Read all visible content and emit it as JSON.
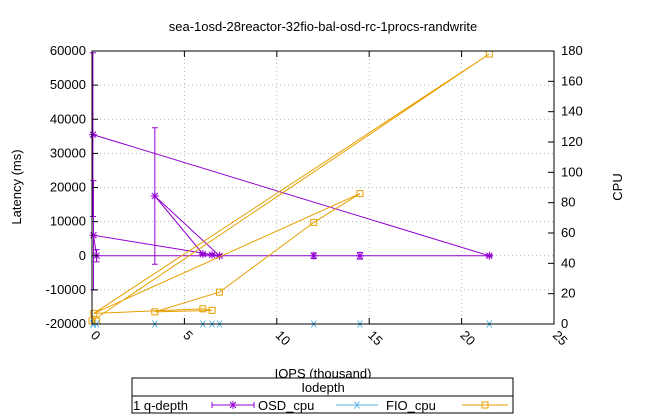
{
  "chart_data": {
    "type": "line",
    "title": "sea-1osd-28reactor-32fio-bal-osd-rc-1procs-randwrite",
    "xlabel": "IOPS (thousand)",
    "ylabel": "Latency (ms)",
    "y2label": "CPU",
    "xlim": [
      0,
      25
    ],
    "ylim": [
      -20000,
      60000
    ],
    "y2lim": [
      0,
      180
    ],
    "xticks": [
      "0",
      "5",
      "10",
      "15",
      "20",
      "25"
    ],
    "yticks": [
      "-20000",
      "-10000",
      "0",
      "10000",
      "20000",
      "30000",
      "40000",
      "50000",
      "60000"
    ],
    "y2ticks": [
      "0",
      "20",
      "40",
      "60",
      "80",
      "100",
      "120",
      "140",
      "160",
      "180"
    ],
    "legend": {
      "title": "Iodepth",
      "label": "1 q-depth",
      "placement": "bottom-center"
    },
    "series": [
      {
        "name": "OSD_cpu",
        "axis": "y",
        "color": "#9400d3",
        "marker": "star",
        "points": [
          {
            "x": 0.05,
            "y": 35500,
            "err": 24000
          },
          {
            "x": 0.08,
            "y": 6000,
            "err": 16000
          },
          {
            "x": 0.25,
            "y": 0,
            "err": 1800
          },
          {
            "x": 3.4,
            "y": 17500,
            "err": 20000
          },
          {
            "x": 6.0,
            "y": 500,
            "err": 300
          },
          {
            "x": 6.5,
            "y": 300,
            "err": 300
          },
          {
            "x": 6.9,
            "y": 0,
            "err": 300
          },
          {
            "x": 12.0,
            "y": 0,
            "err": 800
          },
          {
            "x": 14.5,
            "y": 0,
            "err": 1000
          },
          {
            "x": 21.5,
            "y": 0,
            "err": 300
          }
        ],
        "path": [
          [
            0.05,
            35500
          ],
          [
            21.5,
            0
          ],
          [
            14.5,
            0
          ],
          [
            12.0,
            0
          ],
          [
            6.9,
            0
          ],
          [
            6.5,
            300
          ],
          [
            6.0,
            500
          ],
          [
            3.4,
            17500
          ],
          [
            6.9,
            0
          ],
          [
            0.25,
            0
          ],
          [
            0.08,
            6000
          ],
          [
            6.9,
            0
          ]
        ]
      },
      {
        "name": "FIO_cpu",
        "axis": "y",
        "color": "#56b4e9",
        "marker": "asterisk",
        "points": [
          {
            "x": 0.05,
            "y": -20000
          },
          {
            "x": 0.08,
            "y": -20000
          },
          {
            "x": 0.25,
            "y": -20000
          },
          {
            "x": 3.4,
            "y": -20000
          },
          {
            "x": 6.0,
            "y": -20000
          },
          {
            "x": 6.5,
            "y": -20000
          },
          {
            "x": 6.9,
            "y": -20000
          },
          {
            "x": 12.0,
            "y": -20000
          },
          {
            "x": 14.5,
            "y": -20000
          },
          {
            "x": 21.5,
            "y": -20000
          }
        ]
      },
      {
        "name": "",
        "axis": "y2",
        "color": "#e6a000",
        "marker": "square",
        "points": [
          {
            "x": 0.0,
            "y": 2
          },
          {
            "x": 0.1,
            "y": 7
          },
          {
            "x": 0.25,
            "y": 2
          },
          {
            "x": 3.4,
            "y": 8
          },
          {
            "x": 6.0,
            "y": 10
          },
          {
            "x": 6.5,
            "y": 9
          },
          {
            "x": 6.9,
            "y": 21
          },
          {
            "x": 12.0,
            "y": 67
          },
          {
            "x": 14.5,
            "y": 86
          },
          {
            "x": 21.5,
            "y": 178
          }
        ],
        "path": [
          [
            0.0,
            2
          ],
          [
            21.5,
            178
          ],
          [
            0.1,
            7
          ],
          [
            14.5,
            86
          ],
          [
            12.0,
            67
          ],
          [
            6.9,
            21
          ],
          [
            3.4,
            8
          ],
          [
            6.5,
            9
          ],
          [
            6.0,
            10
          ],
          [
            0.1,
            7
          ]
        ]
      }
    ]
  }
}
